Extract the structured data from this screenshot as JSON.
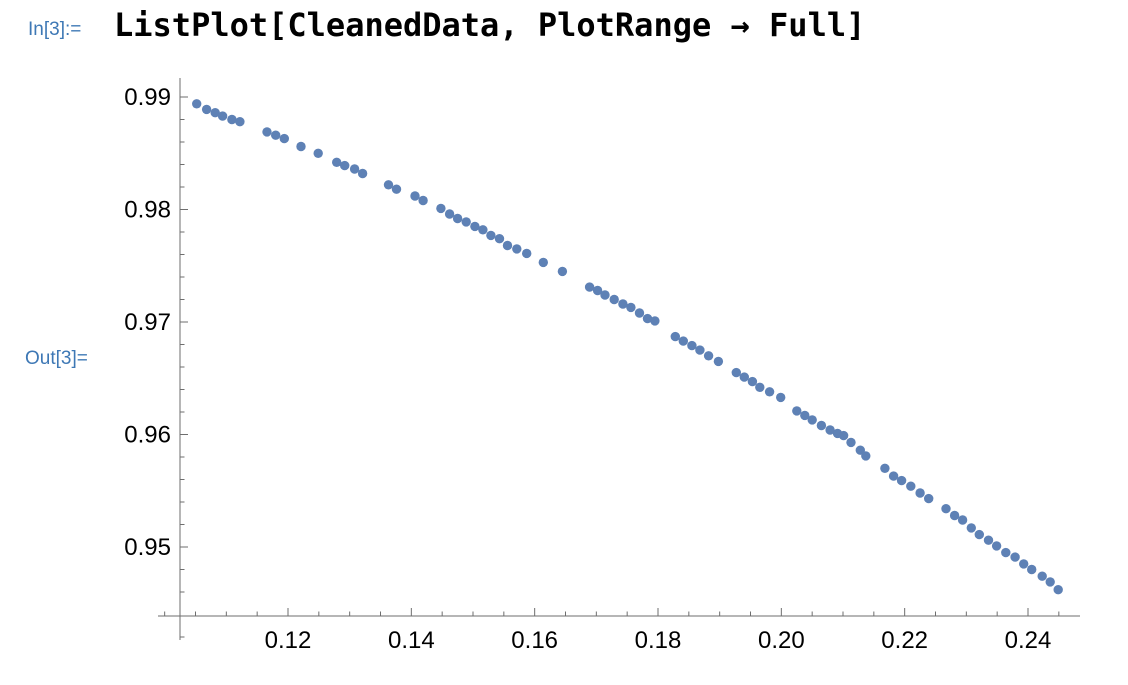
{
  "input_cell": {
    "label": "In[3]:=",
    "code": "ListPlot[CleanedData, PlotRange → Full]"
  },
  "output_cell": {
    "label": "Out[3]="
  },
  "colors": {
    "cell_label": "#3E78B5",
    "point": "#5E81B5",
    "axis": "#6E6E6E",
    "tick_text": "#000000"
  },
  "chart_data": {
    "type": "scatter",
    "title": "",
    "xlabel": "",
    "ylabel": "",
    "legend": "none",
    "grid": "off",
    "x_axis": {
      "range": [
        0.1025,
        0.248
      ],
      "major_ticks": [
        0.12,
        0.14,
        0.16,
        0.18,
        0.2,
        0.22,
        0.24
      ],
      "major_labels": [
        "0.12",
        "0.14",
        "0.16",
        "0.18",
        "0.20",
        "0.22",
        "0.24"
      ],
      "minor_ticks": [
        0.1,
        0.105,
        0.11,
        0.115,
        0.125,
        0.13,
        0.135,
        0.145,
        0.15,
        0.155,
        0.165,
        0.17,
        0.175,
        0.185,
        0.19,
        0.195,
        0.205,
        0.21,
        0.215,
        0.225,
        0.23,
        0.235,
        0.245
      ]
    },
    "y_axis": {
      "range": [
        0.9438,
        0.992
      ],
      "major_ticks": [
        0.99,
        0.98,
        0.97,
        0.96,
        0.95
      ],
      "major_labels": [
        "0.99",
        "0.98",
        "0.97",
        "0.96",
        "0.95"
      ],
      "minor_ticks": [
        0.988,
        0.986,
        0.984,
        0.982,
        0.978,
        0.976,
        0.974,
        0.972,
        0.968,
        0.966,
        0.964,
        0.962,
        0.958,
        0.956,
        0.954,
        0.952,
        0.948,
        0.946,
        0.942
      ]
    },
    "points": [
      [
        0.1052,
        0.9894
      ],
      [
        0.1068,
        0.9889
      ],
      [
        0.1082,
        0.9886
      ],
      [
        0.1094,
        0.9883
      ],
      [
        0.1109,
        0.988
      ],
      [
        0.1122,
        0.9878
      ],
      [
        0.1166,
        0.9869
      ],
      [
        0.118,
        0.9866
      ],
      [
        0.1194,
        0.9863
      ],
      [
        0.1221,
        0.9856
      ],
      [
        0.1249,
        0.985
      ],
      [
        0.1279,
        0.9842
      ],
      [
        0.1292,
        0.9839
      ],
      [
        0.1308,
        0.9836
      ],
      [
        0.1321,
        0.9832
      ],
      [
        0.1363,
        0.9822
      ],
      [
        0.1376,
        0.9818
      ],
      [
        0.1406,
        0.9812
      ],
      [
        0.1419,
        0.9808
      ],
      [
        0.1448,
        0.9801
      ],
      [
        0.1462,
        0.9796
      ],
      [
        0.1475,
        0.9792
      ],
      [
        0.1489,
        0.9789
      ],
      [
        0.1503,
        0.9785
      ],
      [
        0.1516,
        0.9782
      ],
      [
        0.1529,
        0.9777
      ],
      [
        0.1543,
        0.9774
      ],
      [
        0.1556,
        0.9768
      ],
      [
        0.1571,
        0.9765
      ],
      [
        0.1587,
        0.9761
      ],
      [
        0.1614,
        0.9753
      ],
      [
        0.1645,
        0.9745
      ],
      [
        0.1689,
        0.9731
      ],
      [
        0.1702,
        0.9728
      ],
      [
        0.1714,
        0.9724
      ],
      [
        0.1729,
        0.972
      ],
      [
        0.1743,
        0.9716
      ],
      [
        0.1756,
        0.9713
      ],
      [
        0.177,
        0.9708
      ],
      [
        0.1783,
        0.9703
      ],
      [
        0.1795,
        0.9701
      ],
      [
        0.1828,
        0.9687
      ],
      [
        0.1841,
        0.9683
      ],
      [
        0.1855,
        0.9679
      ],
      [
        0.1868,
        0.9675
      ],
      [
        0.1882,
        0.967
      ],
      [
        0.1898,
        0.9665
      ],
      [
        0.1927,
        0.9655
      ],
      [
        0.194,
        0.9651
      ],
      [
        0.1953,
        0.9647
      ],
      [
        0.1965,
        0.9642
      ],
      [
        0.1981,
        0.9638
      ],
      [
        0.1999,
        0.9633
      ],
      [
        0.2025,
        0.9621
      ],
      [
        0.2038,
        0.9617
      ],
      [
        0.205,
        0.9613
      ],
      [
        0.2065,
        0.9608
      ],
      [
        0.2079,
        0.9604
      ],
      [
        0.2091,
        0.9601
      ],
      [
        0.2101,
        0.9599
      ],
      [
        0.2113,
        0.9593
      ],
      [
        0.2128,
        0.9586
      ],
      [
        0.2137,
        0.9581
      ],
      [
        0.2168,
        0.957
      ],
      [
        0.2182,
        0.9563
      ],
      [
        0.2195,
        0.9559
      ],
      [
        0.221,
        0.9554
      ],
      [
        0.2225,
        0.9548
      ],
      [
        0.2239,
        0.9543
      ],
      [
        0.2267,
        0.9534
      ],
      [
        0.2281,
        0.9528
      ],
      [
        0.2294,
        0.9524
      ],
      [
        0.2308,
        0.9517
      ],
      [
        0.2321,
        0.9511
      ],
      [
        0.2336,
        0.9506
      ],
      [
        0.2349,
        0.9501
      ],
      [
        0.2364,
        0.9495
      ],
      [
        0.2379,
        0.9491
      ],
      [
        0.2393,
        0.9485
      ],
      [
        0.2406,
        0.948
      ],
      [
        0.2423,
        0.9474
      ],
      [
        0.2436,
        0.9469
      ],
      [
        0.2449,
        0.9462
      ]
    ]
  }
}
